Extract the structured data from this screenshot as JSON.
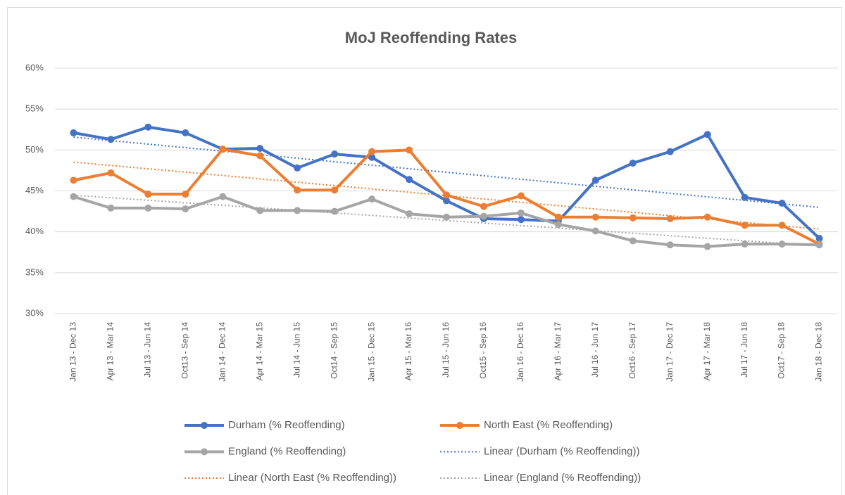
{
  "chart_data": {
    "type": "line",
    "title": "MoJ Reoffending Rates",
    "categories": [
      "Jan 13 - Dec 13",
      "Apr 13 - Mar 14",
      "Jul 13 - Jun 14",
      "Oct13 - Sep 14",
      "Jan 14 - Dec 14",
      "Apr 14 - Mar 15",
      "Jul 14 - Jun 15",
      "Oct14 - Sep 15",
      "Jan 15 - Dec 15",
      "Apr 15 - Mar 16",
      "Jul 15 - Jun 16",
      "Oct15 - Sep 16",
      "Jan 16 - Dec 16",
      "Apr 16 - Mar 17",
      "Jul 16 - Jun 17",
      "Oct16 - Sep 17",
      "Jan 17 - Dec 17",
      "Apr 17 - Mar 18",
      "Jul 17 - Jun 18",
      "Oct17 - Sep 18",
      "Jan 18 - Dec 18"
    ],
    "series": [
      {
        "name": "Durham (% Reoffending)",
        "color": "#4472c4",
        "values": [
          52.1,
          51.3,
          52.8,
          52.1,
          50.1,
          50.2,
          47.8,
          49.5,
          49.1,
          46.4,
          43.8,
          41.6,
          41.5,
          41.3,
          46.3,
          48.4,
          49.8,
          51.9,
          44.2,
          43.5,
          39.2
        ]
      },
      {
        "name": "North East (% Reoffending)",
        "color": "#ed7d31",
        "values": [
          46.3,
          47.2,
          44.6,
          44.6,
          50.1,
          49.3,
          45.1,
          45.1,
          49.8,
          50.0,
          44.5,
          43.1,
          44.4,
          41.8,
          41.8,
          41.7,
          41.6,
          41.8,
          40.8,
          40.8,
          38.5
        ]
      },
      {
        "name": "England (% Reoffending)",
        "color": "#a5a5a5",
        "values": [
          44.3,
          42.9,
          42.9,
          42.8,
          44.3,
          42.6,
          42.6,
          42.5,
          44.0,
          42.2,
          41.8,
          41.9,
          42.3,
          40.9,
          40.1,
          38.9,
          38.4,
          38.2,
          38.5,
          38.5,
          38.4
        ]
      }
    ],
    "trendlines": [
      {
        "name": "Linear (Durham (% Reoffending))",
        "color": "#4472c4"
      },
      {
        "name": "Linear (North East (% Reoffending))",
        "color": "#ed7d31"
      },
      {
        "name": "Linear (England (% Reoffending))",
        "color": "#a5a5a5"
      }
    ],
    "ylim": [
      30,
      60
    ],
    "yticks": [
      {
        "value": 30,
        "label": "30%"
      },
      {
        "value": 35,
        "label": "35%"
      },
      {
        "value": 40,
        "label": "40%"
      },
      {
        "value": 45,
        "label": "45%"
      },
      {
        "value": 50,
        "label": "50%"
      },
      {
        "value": 55,
        "label": "55%"
      },
      {
        "value": 60,
        "label": "60%"
      }
    ],
    "grid": true,
    "legend": "bottom"
  }
}
